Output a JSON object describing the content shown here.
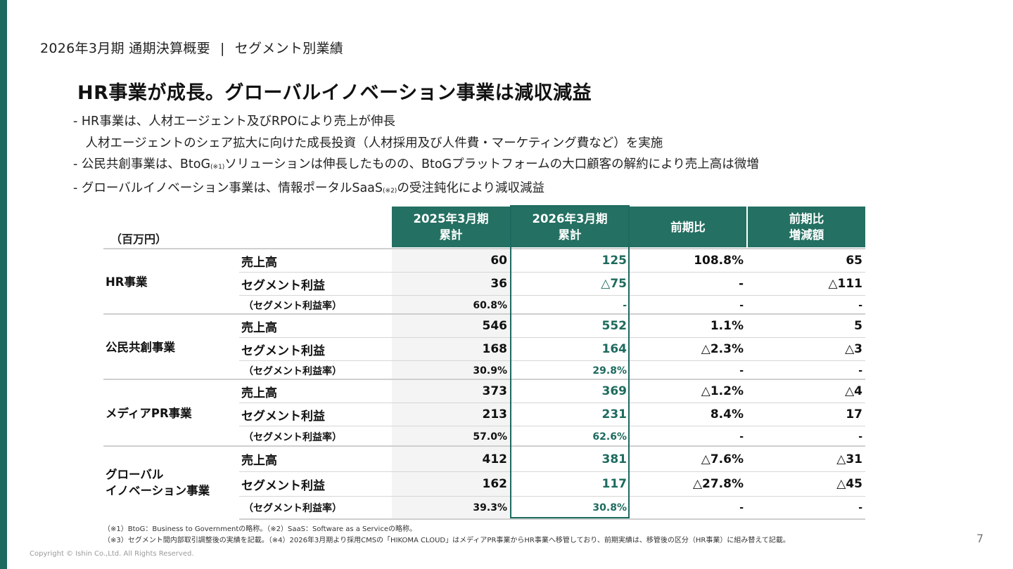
{
  "colors": {
    "accent": "#1d6b60",
    "header_bg": "#247062",
    "highlight_text": "#1e6b5e"
  },
  "header": {
    "period": "2026年3月期 通期決算概要",
    "separator": "|",
    "section": "セグメント別業績"
  },
  "title": "HR事業が成長。グローバルイノベーション事業は減収減益",
  "bullets": [
    {
      "text": "- HR事業は、人材エージェント及びRPOにより売上が伸長"
    },
    {
      "text": "　人材エージェントのシェア拡大に向けた成長投資（人材採用及び人件費・マーケティング費など）を実施"
    },
    {
      "pre": "- 公民共創事業は、BtoG",
      "note": "(※1)",
      "post": "ソリューションは伸長したものの、BtoGプラットフォームの大口顧客の解約により売上高は微増"
    },
    {
      "pre": "- グローバルイノベーション事業は、情報ポータルSaaS",
      "note": "(※2)",
      "post": "の受注鈍化により減収減益"
    }
  ],
  "table": {
    "unit": "（百万円）",
    "columns": [
      {
        "line1": "2025年3月期",
        "line2": "累計"
      },
      {
        "line1": "2026年3月期",
        "line2": "累計"
      },
      {
        "line1": "前期比",
        "line2": ""
      },
      {
        "line1": "前期比",
        "line2": "増減額"
      }
    ],
    "segments": [
      {
        "name": "HR事業",
        "rows": [
          {
            "label": "売上高",
            "values": [
              "60",
              "125",
              "108.8%",
              "65"
            ]
          },
          {
            "label": "セグメント利益",
            "values": [
              "36",
              "△75",
              "-",
              "△111"
            ]
          },
          {
            "label": "（セグメント利益率）",
            "values": [
              "60.8%",
              "-",
              "-",
              "-"
            ]
          }
        ]
      },
      {
        "name": "公民共創事業",
        "rows": [
          {
            "label": "売上高",
            "values": [
              "546",
              "552",
              "1.1%",
              "5"
            ]
          },
          {
            "label": "セグメント利益",
            "values": [
              "168",
              "164",
              "△2.3%",
              "△3"
            ]
          },
          {
            "label": "（セグメント利益率）",
            "values": [
              "30.9%",
              "29.8%",
              "-",
              "-"
            ]
          }
        ]
      },
      {
        "name": "メディアPR事業",
        "rows": [
          {
            "label": "売上高",
            "values": [
              "373",
              "369",
              "△1.2%",
              "△4"
            ]
          },
          {
            "label": "セグメント利益",
            "values": [
              "213",
              "231",
              "8.4%",
              "17"
            ]
          },
          {
            "label": "（セグメント利益率）",
            "values": [
              "57.0%",
              "62.6%",
              "-",
              "-"
            ]
          }
        ]
      },
      {
        "name_line1": "グローバル",
        "name_line2": "イノベーション事業",
        "rows": [
          {
            "label": "売上高",
            "values": [
              "412",
              "381",
              "△7.6%",
              "△31"
            ]
          },
          {
            "label": "セグメント利益",
            "values": [
              "162",
              "117",
              "△27.8%",
              "△45"
            ]
          },
          {
            "label": "（セグメント利益率）",
            "values": [
              "39.3%",
              "30.8%",
              "-",
              "-"
            ]
          }
        ]
      }
    ]
  },
  "notes": [
    "（※1）BtoG：Business to Governmentの略称。（※2）SaaS：Software as a Serviceの略称。",
    "（※3）セグメント間内部取引調整後の実績を記載。（※4）2026年3月期より採用CMSの「HIKOMA CLOUD」はメディアPR事業からHR事業へ移管しており、前期実績は、移管後の区分（HR事業）に組み替えて記載。"
  ],
  "page_number": "7",
  "copyright": "Copyright © Ishin Co.,Ltd. All Rights Reserved."
}
